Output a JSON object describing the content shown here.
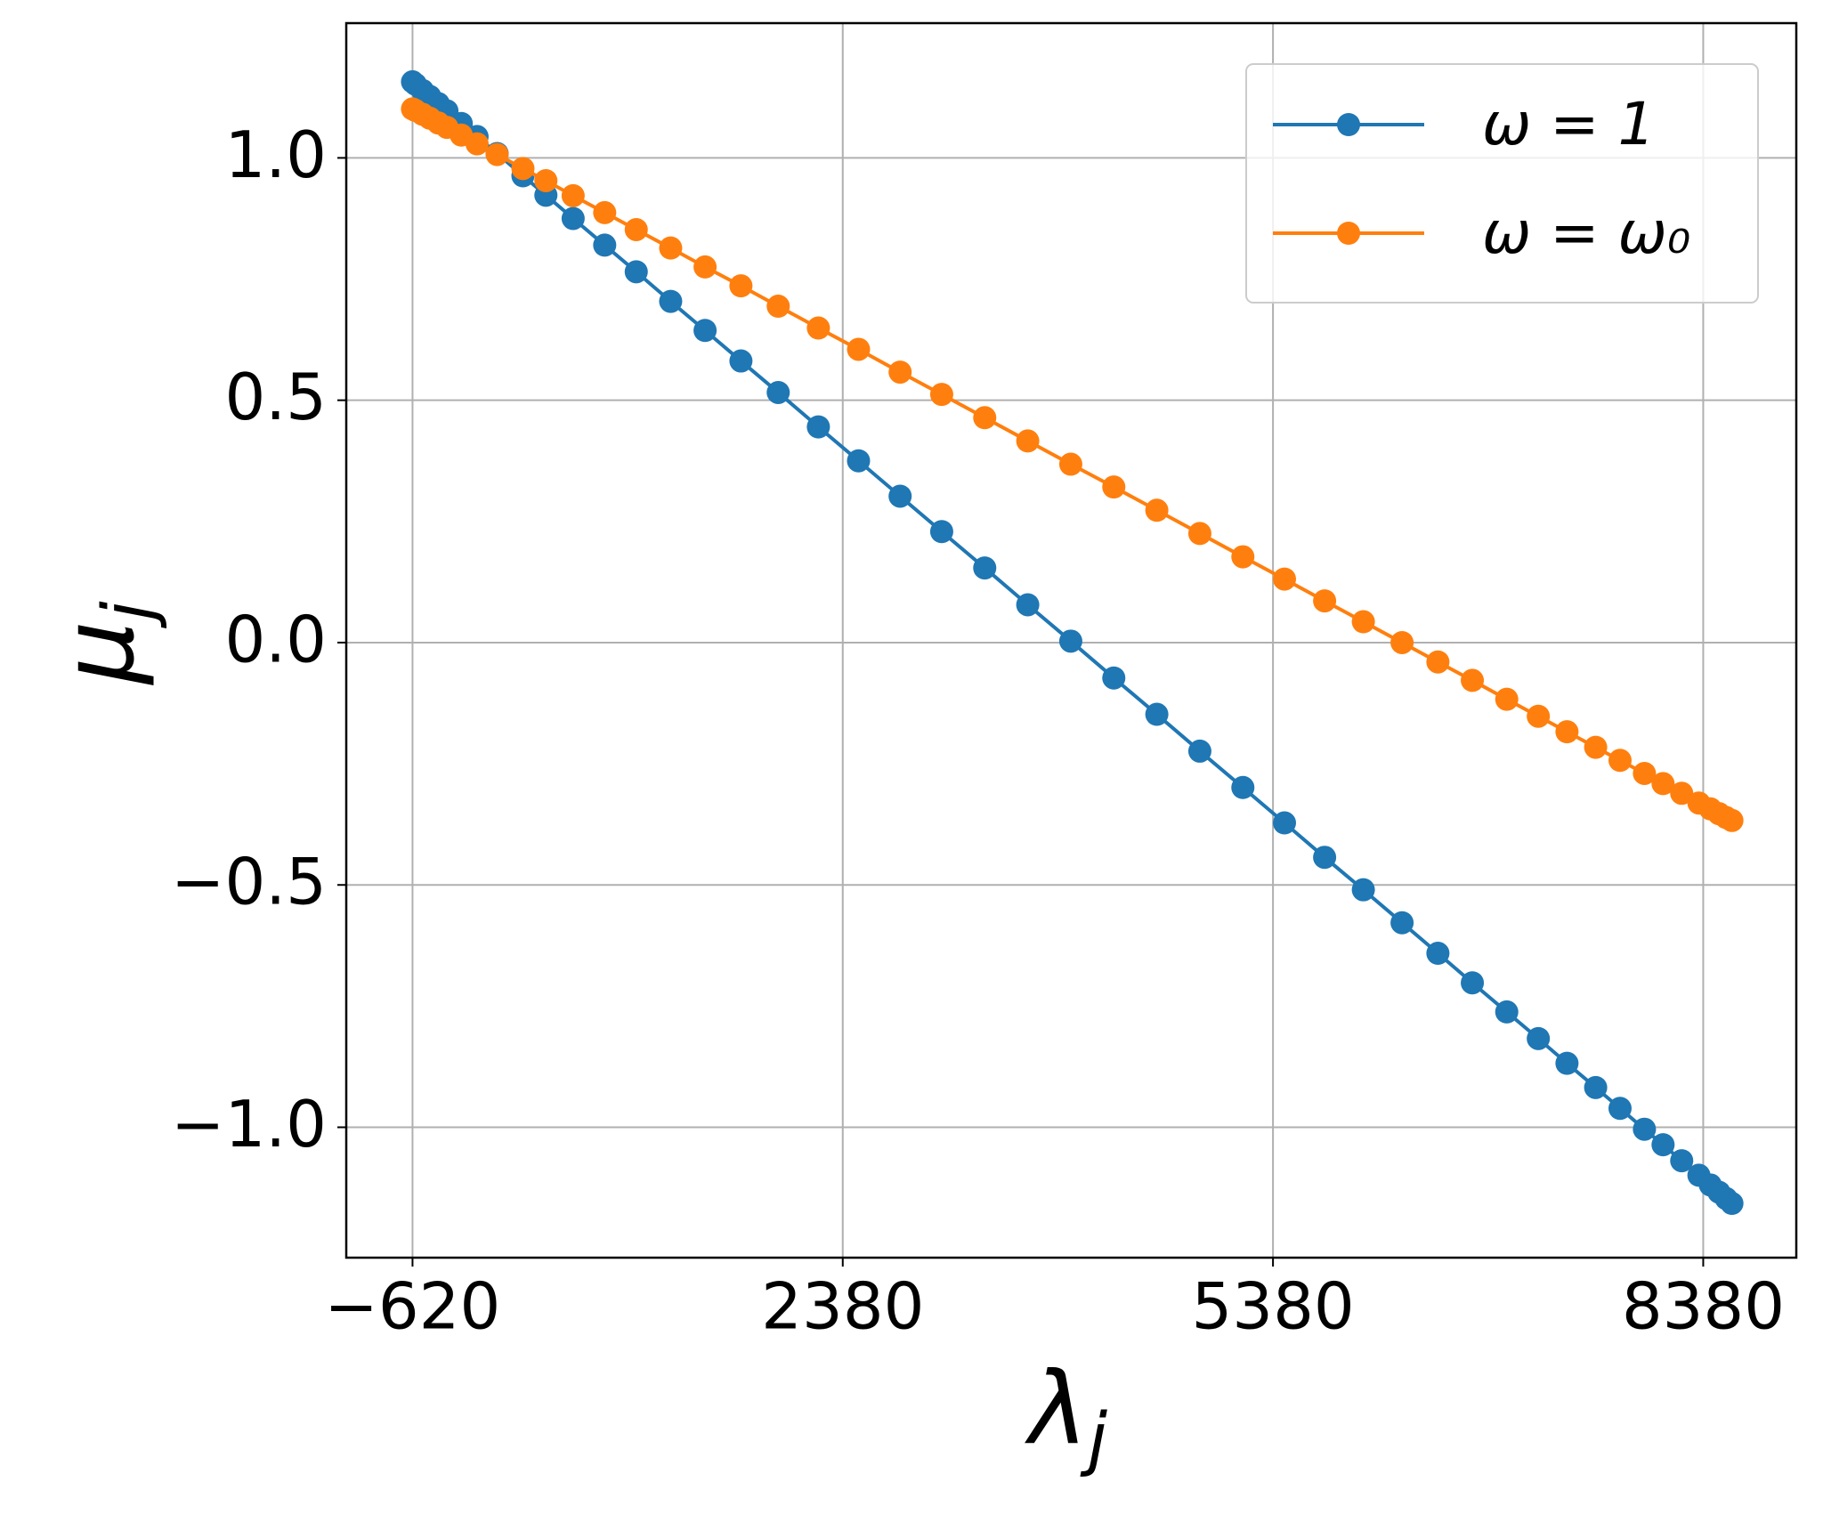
{
  "chart_data": {
    "type": "line",
    "xlabel": {
      "symbol": "λ",
      "subscript": "j"
    },
    "ylabel": {
      "symbol": "μ",
      "subscript": "j"
    },
    "x": [
      -620,
      -600,
      -550,
      -500,
      -440,
      -380,
      -280,
      -170,
      -30,
      150,
      310,
      500,
      720,
      940,
      1180,
      1420,
      1670,
      1930,
      2210,
      2490,
      2780,
      3070,
      3370,
      3670,
      3970,
      4270,
      4570,
      4870,
      5170,
      5460,
      5740,
      6010,
      6280,
      6530,
      6770,
      7010,
      7230,
      7430,
      7630,
      7800,
      7970,
      8100,
      8230,
      8350,
      8430,
      8490,
      8540,
      8580
    ],
    "series": [
      {
        "name": "ω = 1",
        "color": "#1f77b4",
        "values": [
          1.157,
          1.152,
          1.139,
          1.127,
          1.112,
          1.097,
          1.071,
          1.044,
          1.009,
          0.963,
          0.923,
          0.875,
          0.82,
          0.765,
          0.704,
          0.644,
          0.581,
          0.516,
          0.445,
          0.375,
          0.302,
          0.229,
          0.154,
          0.078,
          0.003,
          -0.073,
          -0.148,
          -0.224,
          -0.299,
          -0.372,
          -0.443,
          -0.51,
          -0.578,
          -0.641,
          -0.702,
          -0.762,
          -0.817,
          -0.868,
          -0.918,
          -0.961,
          -1.004,
          -1.036,
          -1.069,
          -1.099,
          -1.119,
          -1.134,
          -1.147,
          -1.157
        ]
      },
      {
        "name": "ω = ω₀",
        "color": "#ff7f0e",
        "values": [
          1.101,
          1.098,
          1.09,
          1.082,
          1.072,
          1.063,
          1.047,
          1.029,
          1.007,
          0.978,
          0.953,
          0.922,
          0.887,
          0.852,
          0.814,
          0.775,
          0.736,
          0.694,
          0.649,
          0.605,
          0.558,
          0.512,
          0.464,
          0.416,
          0.368,
          0.321,
          0.273,
          0.225,
          0.177,
          0.131,
          0.086,
          0.043,
          0.0,
          -0.04,
          -0.078,
          -0.117,
          -0.152,
          -0.184,
          -0.216,
          -0.243,
          -0.27,
          -0.291,
          -0.311,
          -0.331,
          -0.343,
          -0.353,
          -0.361,
          -0.367
        ]
      }
    ],
    "xlim": [
      -1082,
      9029
    ],
    "ylim": [
      -1.269,
      1.278
    ],
    "xticks": [
      {
        "value": -620,
        "label": "−620"
      },
      2380,
      5380,
      8380
    ],
    "yticks": [
      {
        "value": -1,
        "label": "−1.0"
      },
      {
        "value": -0.5,
        "label": "−0.5"
      },
      {
        "value": 0,
        "label": "0.0"
      },
      0.5,
      {
        "value": 1,
        "label": "1.0"
      }
    ],
    "grid": true,
    "legend": "upper right",
    "markers": true
  }
}
